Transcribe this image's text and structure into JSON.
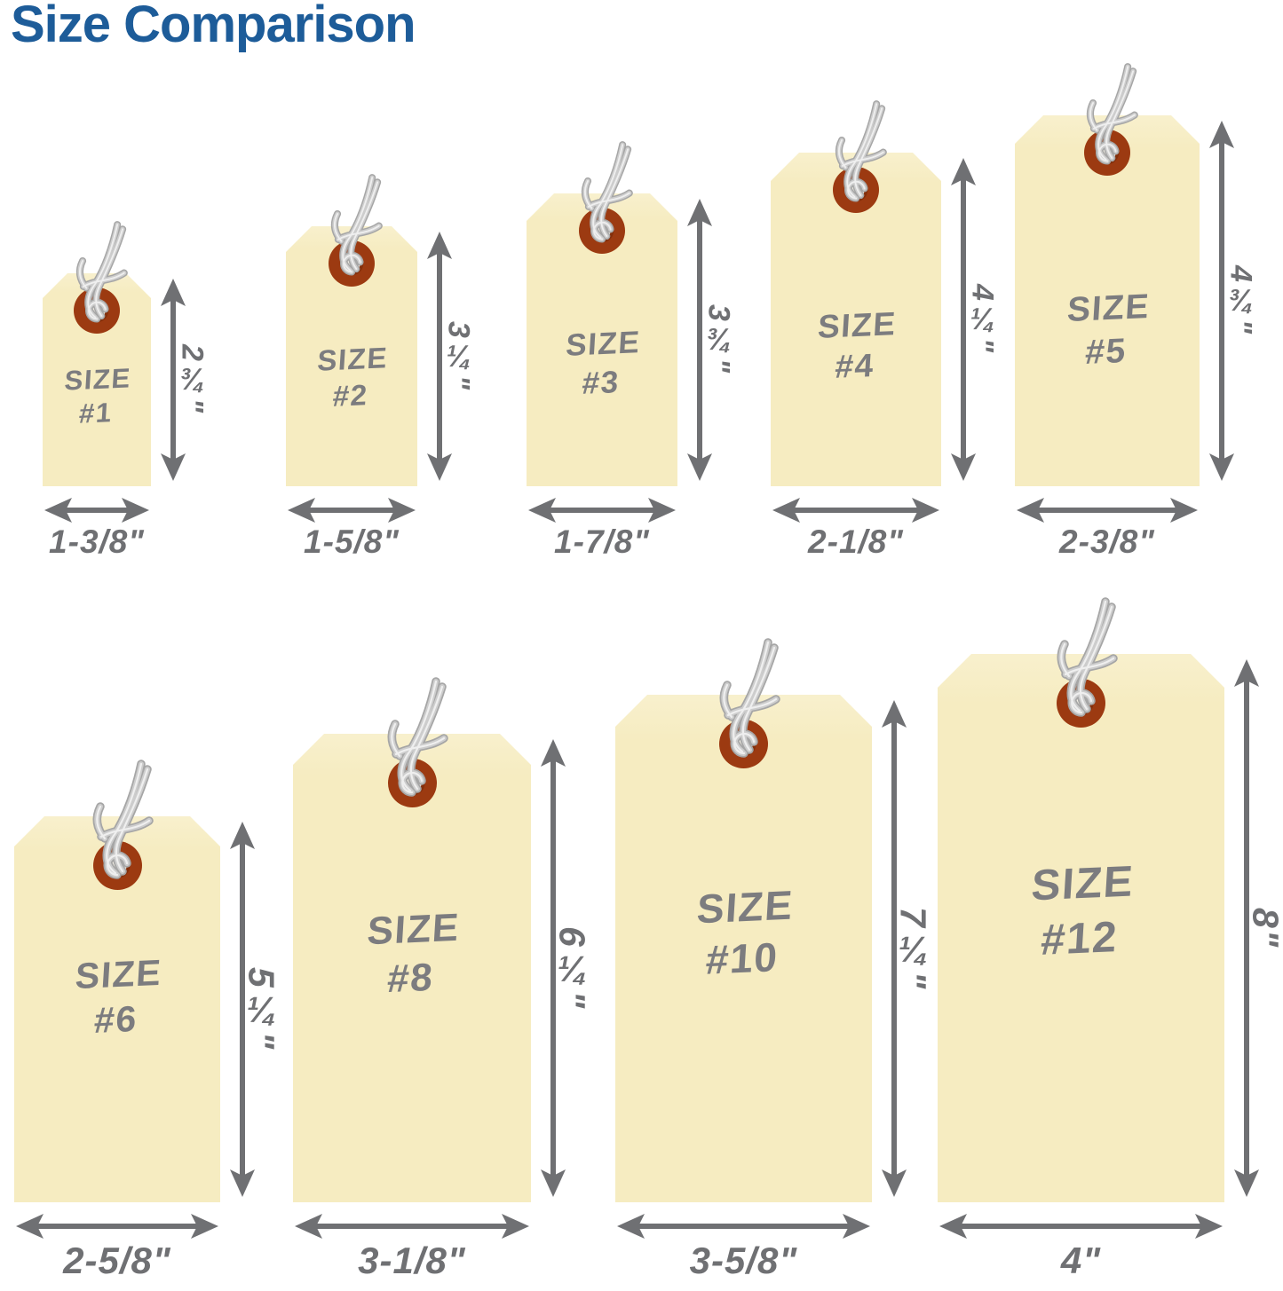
{
  "title": "Size Comparison",
  "colors": {
    "background": "#ffffff",
    "title_blue": "#1d5c99",
    "tag_fill": "#f6ecc1",
    "eyelet_brown": "#9c3a11",
    "eyelet_hole": "#f4f0e6",
    "string_gray": "#c6c6c6",
    "dimension_gray": "#6f7073",
    "tag_text_gray": "#7c7c7f"
  },
  "rows": [
    {
      "name": "top-row",
      "tags": [
        {
          "size_name": "Size #1",
          "label_line1": "Size",
          "label_line2": "#1",
          "height_label": "2¾\"",
          "width_label": "1-3/8\"",
          "height_inches": 2.75,
          "width_inches": 1.375
        },
        {
          "size_name": "Size #2",
          "label_line1": "Size",
          "label_line2": "#2",
          "height_label": "3¼\"",
          "width_label": "1-5/8\"",
          "height_inches": 3.25,
          "width_inches": 1.625
        },
        {
          "size_name": "Size #3",
          "label_line1": "Size",
          "label_line2": "#3",
          "height_label": "3¾\"",
          "width_label": "1-7/8\"",
          "height_inches": 3.75,
          "width_inches": 1.875
        },
        {
          "size_name": "Size #4",
          "label_line1": "Size",
          "label_line2": "#4",
          "height_label": "4¼\"",
          "width_label": "2-1/8\"",
          "height_inches": 4.25,
          "width_inches": 2.125
        },
        {
          "size_name": "Size #5",
          "label_line1": "Size",
          "label_line2": "#5",
          "height_label": "4¾\"",
          "width_label": "2-3/8\"",
          "height_inches": 4.75,
          "width_inches": 2.375
        }
      ]
    },
    {
      "name": "bottom-row",
      "tags": [
        {
          "size_name": "Size #6",
          "label_line1": "Size",
          "label_line2": "#6",
          "height_label": "5¼\"",
          "width_label": "2-5/8\"",
          "height_inches": 5.25,
          "width_inches": 2.625
        },
        {
          "size_name": "Size #8",
          "label_line1": "Size",
          "label_line2": "#8",
          "height_label": "6¼\"",
          "width_label": "3-1/8\"",
          "height_inches": 6.25,
          "width_inches": 3.125
        },
        {
          "size_name": "Size #10",
          "label_line1": "Size",
          "label_line2": "#10",
          "height_label": "7¼\"",
          "width_label": "3-5/8\"",
          "height_inches": 7.25,
          "width_inches": 3.625
        },
        {
          "size_name": "Size #12",
          "label_line1": "Size",
          "label_line2": "#12",
          "height_label": "8\"",
          "width_label": "4\"",
          "height_inches": 8,
          "width_inches": 4
        }
      ]
    }
  ]
}
